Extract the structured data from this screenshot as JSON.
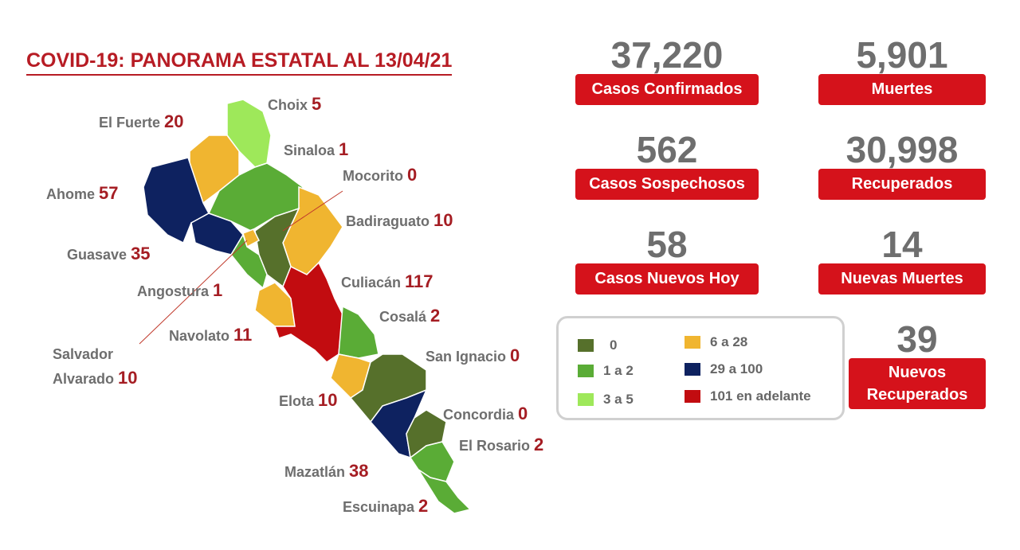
{
  "title": "COVID-19: PANORAMA ESTATAL AL 13/04/21",
  "municipalities": [
    {
      "name": "Choix",
      "value": 5
    },
    {
      "name": "El Fuerte",
      "value": 20
    },
    {
      "name": "Sinaloa",
      "value": 1
    },
    {
      "name": "Mocorito",
      "value": 0
    },
    {
      "name": "Ahome",
      "value": 57
    },
    {
      "name": "Badiraguato",
      "value": 10
    },
    {
      "name": "Guasave",
      "value": 35
    },
    {
      "name": "Angostura",
      "value": 1
    },
    {
      "name": "Culiacán",
      "value": 117
    },
    {
      "name": "Cosalá",
      "value": 2
    },
    {
      "name": "Navolato",
      "value": 11
    },
    {
      "name": "Salvador Alvarado",
      "value": 10
    },
    {
      "name": "San Ignacio",
      "value": 0
    },
    {
      "name": "Elota",
      "value": 10
    },
    {
      "name": "Concordia",
      "value": 0
    },
    {
      "name": "El Rosario",
      "value": 2
    },
    {
      "name": "Mazatlán",
      "value": 38
    },
    {
      "name": "Escuinapa",
      "value": 2
    }
  ],
  "stats": [
    {
      "value": "37,220",
      "label": "Casos Confirmados"
    },
    {
      "value": "5,901",
      "label": "Muertes"
    },
    {
      "value": "562",
      "label": "Casos Sospechosos"
    },
    {
      "value": "30,998",
      "label": "Recuperados"
    },
    {
      "value": "58",
      "label": "Casos Nuevos Hoy"
    },
    {
      "value": "14",
      "label": "Nuevas Muertes"
    },
    {
      "value": "39",
      "label": "Nuevos Recuperados"
    }
  ],
  "legend": [
    {
      "label": "0",
      "color": "#56702b"
    },
    {
      "label": "1 a 2",
      "color": "#5aac36"
    },
    {
      "label": "3 a 5",
      "color": "#9ee85a"
    },
    {
      "label": "6 a 28",
      "color": "#f0b530"
    },
    {
      "label": "29 a 100",
      "color": "#0e2260"
    },
    {
      "label": "101 en adelante",
      "color": "#c20c10"
    }
  ]
}
